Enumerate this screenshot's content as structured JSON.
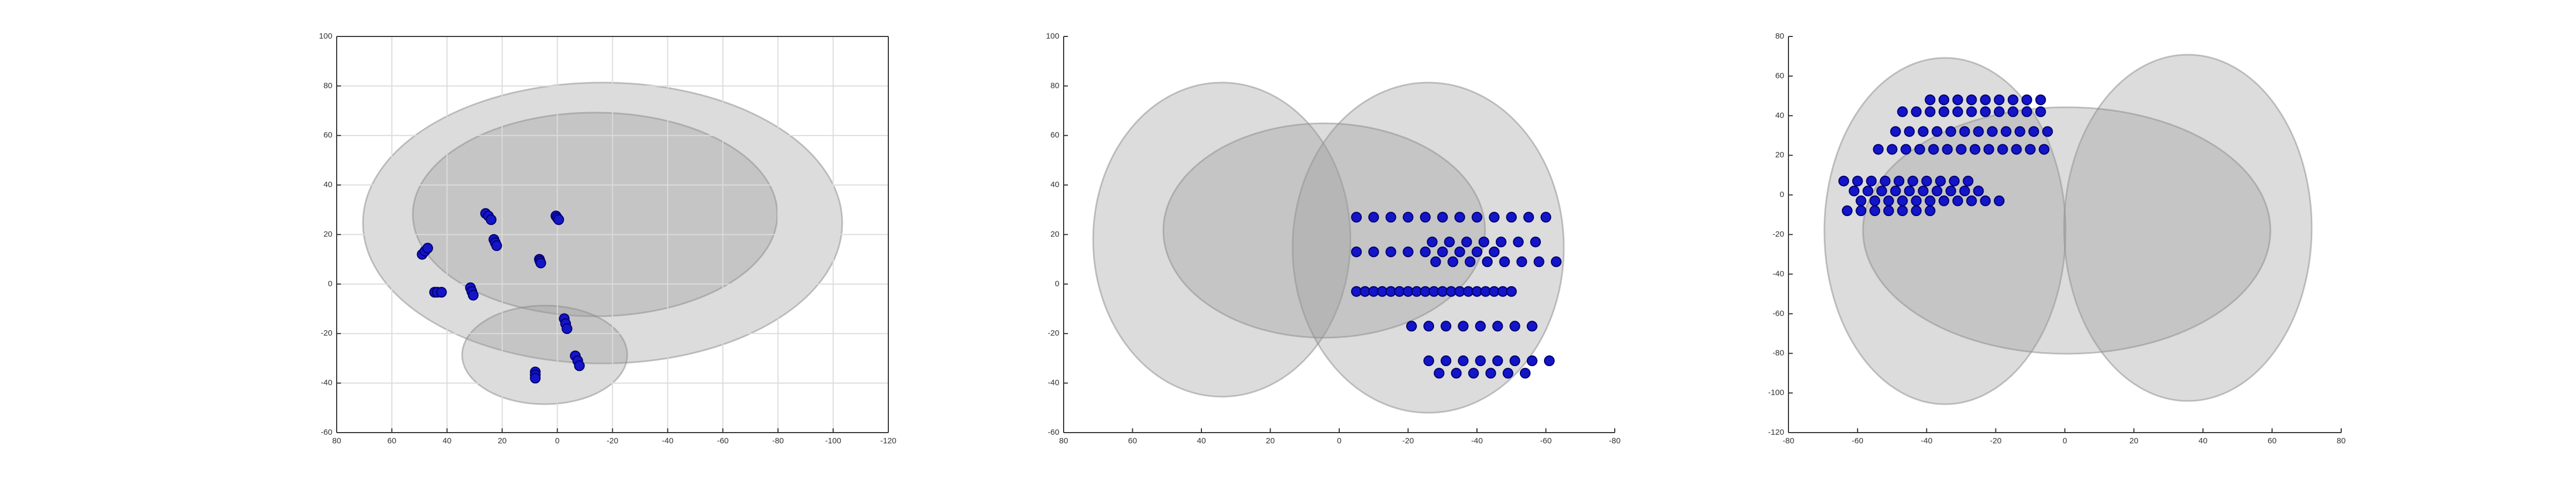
{
  "chart_data": [
    {
      "type": "scatter",
      "color": "#1414c8",
      "grid": true,
      "xlim": [
        80,
        -120
      ],
      "ylim": [
        -60,
        100
      ],
      "xticks": [
        80,
        60,
        40,
        20,
        0,
        -20,
        -40,
        -60,
        -80,
        -100,
        -120
      ],
      "yticks": [
        -60,
        -40,
        -20,
        0,
        20,
        40,
        60,
        80,
        100
      ],
      "x": [
        49,
        48,
        47,
        26,
        25,
        24,
        23,
        22.5,
        22,
        0.5,
        0,
        -0.5,
        6.5,
        6.3,
        6,
        44.5,
        43.5,
        42,
        31.5,
        31,
        30.5,
        -2.5,
        -3,
        -3.5,
        -6.5,
        -7.4,
        -8,
        8,
        8,
        8
      ],
      "y": [
        12,
        13.3,
        14.5,
        28.5,
        27.5,
        26,
        18,
        16.7,
        15.5,
        27.5,
        26.7,
        26,
        10,
        9.3,
        8.5,
        -3.3,
        -3.3,
        -3.3,
        -1.5,
        -3,
        -4.5,
        -14,
        -16,
        -18,
        -29,
        -31,
        -33,
        -35.5,
        -36.7,
        -38
      ]
    },
    {
      "type": "scatter",
      "color": "#1414c8",
      "grid": false,
      "xlim": [
        80,
        -80
      ],
      "ylim": [
        -60,
        100
      ],
      "xticks": [
        80,
        60,
        40,
        20,
        0,
        -20,
        -40,
        -60,
        -80
      ],
      "yticks": [
        -60,
        -40,
        -20,
        0,
        20,
        40,
        60,
        80,
        100
      ],
      "x": [
        -5,
        -10,
        -15,
        -20,
        -25,
        -30,
        -35,
        -40,
        -45,
        -50,
        -55,
        -60,
        -5,
        -10,
        -15,
        -20,
        -25,
        -30,
        -35,
        -40,
        -45,
        -27,
        -32,
        -37,
        -42,
        -47,
        -52,
        -57,
        -28,
        -33,
        -38,
        -43,
        -48,
        -53,
        -58,
        -63,
        -5,
        -7.5,
        -10,
        -12.5,
        -15,
        -17.5,
        -20,
        -22.5,
        -25,
        -27.5,
        -30,
        -32.5,
        -35,
        -37.5,
        -40,
        -42.5,
        -45,
        -47.5,
        -50,
        -21,
        -26,
        -31,
        -36,
        -41,
        -46,
        -51,
        -56,
        -26,
        -31,
        -36,
        -41,
        -46,
        -51,
        -56,
        -61,
        -29,
        -34,
        -39,
        -44,
        -49,
        -54
      ],
      "y": [
        27,
        27,
        27,
        27,
        27,
        27,
        27,
        27,
        27,
        27,
        27,
        27,
        13,
        13,
        13,
        13,
        13,
        13,
        13,
        13,
        13,
        17,
        17,
        17,
        17,
        17,
        17,
        17,
        9,
        9,
        9,
        9,
        9,
        9,
        9,
        9,
        -3,
        -3,
        -3,
        -3,
        -3,
        -3,
        -3,
        -3,
        -3,
        -3,
        -3,
        -3,
        -3,
        -3,
        -3,
        -3,
        -3,
        -3,
        -3,
        -17,
        -17,
        -17,
        -17,
        -17,
        -17,
        -17,
        -17,
        -31,
        -31,
        -31,
        -31,
        -31,
        -31,
        -31,
        -31,
        -36,
        -36,
        -36,
        -36,
        -36,
        -36
      ]
    },
    {
      "type": "scatter",
      "color": "#1414c8",
      "grid": false,
      "xlim": [
        -80,
        80
      ],
      "ylim": [
        -120,
        80
      ],
      "xticks": [
        -80,
        -60,
        -40,
        -20,
        0,
        20,
        40,
        60,
        80
      ],
      "yticks": [
        -120,
        -100,
        -80,
        -60,
        -40,
        -20,
        0,
        20,
        40,
        60,
        80
      ],
      "x": [
        -39,
        -35,
        -31,
        -27,
        -23,
        -19,
        -15,
        -11,
        -7,
        -47,
        -43,
        -39,
        -35,
        -31,
        -27,
        -23,
        -19,
        -15,
        -11,
        -7,
        -49,
        -45,
        -41,
        -37,
        -33,
        -29,
        -25,
        -21,
        -17,
        -13,
        -9,
        -5,
        -54,
        -50,
        -46,
        -42,
        -38,
        -34,
        -30,
        -26,
        -22,
        -18,
        -14,
        -10,
        -6,
        -64,
        -60,
        -56,
        -52,
        -48,
        -44,
        -40,
        -36,
        -32,
        -28,
        -61,
        -57,
        -53,
        -49,
        -45,
        -41,
        -37,
        -33,
        -29,
        -25,
        -59,
        -55,
        -51,
        -47,
        -43,
        -39,
        -35,
        -31,
        -27,
        -23,
        -19,
        -63,
        -59,
        -55,
        -51,
        -47,
        -43,
        -39
      ],
      "y": [
        48,
        48,
        48,
        48,
        48,
        48,
        48,
        48,
        48,
        42,
        42,
        42,
        42,
        42,
        42,
        42,
        42,
        42,
        42,
        42,
        32,
        32,
        32,
        32,
        32,
        32,
        32,
        32,
        32,
        32,
        32,
        32,
        23,
        23,
        23,
        23,
        23,
        23,
        23,
        23,
        23,
        23,
        23,
        23,
        23,
        7,
        7,
        7,
        7,
        7,
        7,
        7,
        7,
        7,
        7,
        2,
        2,
        2,
        2,
        2,
        2,
        2,
        2,
        2,
        2,
        -3,
        -3,
        -3,
        -3,
        -3,
        -3,
        -3,
        -3,
        -3,
        -3,
        -3,
        -8,
        -8,
        -8,
        -8,
        -8,
        -8,
        -8
      ]
    }
  ]
}
